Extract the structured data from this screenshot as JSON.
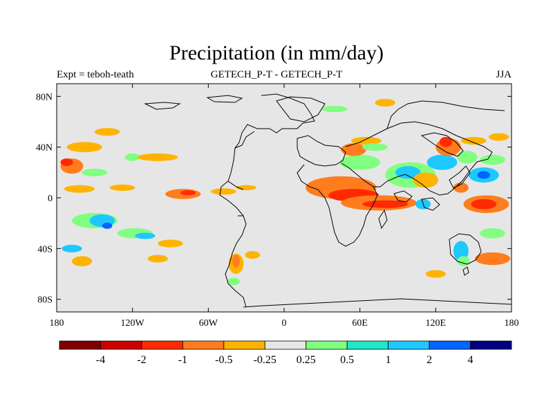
{
  "title": "Precipitation (in mm/day)",
  "subtitle_left": "Expt = teboh-teath",
  "subtitle_center": "GETECH_P-T - GETECH_P-T",
  "subtitle_right": "JJA",
  "map": {
    "background": "#e6e6e6",
    "lon_range": [
      -180,
      180
    ],
    "lat_range": [
      -90,
      90
    ],
    "x_ticks": [
      {
        "value": -180,
        "label": "180"
      },
      {
        "value": -120,
        "label": "120W"
      },
      {
        "value": -60,
        "label": "60W"
      },
      {
        "value": 0,
        "label": "0"
      },
      {
        "value": 60,
        "label": "60E"
      },
      {
        "value": 120,
        "label": "120E"
      },
      {
        "value": 180,
        "label": "180"
      }
    ],
    "y_ticks": [
      {
        "value": 80,
        "label": "80N"
      },
      {
        "value": 40,
        "label": "40N"
      },
      {
        "value": 0,
        "label": "0"
      },
      {
        "value": -40,
        "label": "40S"
      },
      {
        "value": -80,
        "label": "80S"
      }
    ],
    "anomaly_patches": [
      {
        "lon": -168,
        "lat": 25,
        "rx": 9,
        "ry": 6,
        "color": "#ff7d1e"
      },
      {
        "lon": -172,
        "lat": 28,
        "rx": 5,
        "ry": 3,
        "color": "#ff2a00"
      },
      {
        "lon": -158,
        "lat": 40,
        "rx": 14,
        "ry": 4,
        "color": "#ffb300"
      },
      {
        "lon": -140,
        "lat": 52,
        "rx": 10,
        "ry": 3,
        "color": "#ffb300"
      },
      {
        "lon": -150,
        "lat": 20,
        "rx": 10,
        "ry": 3,
        "color": "#80ff80"
      },
      {
        "lon": -120,
        "lat": 32,
        "rx": 6,
        "ry": 3,
        "color": "#80ff80"
      },
      {
        "lon": -100,
        "lat": 32,
        "rx": 16,
        "ry": 3,
        "color": "#ffb300"
      },
      {
        "lon": -162,
        "lat": 7,
        "rx": 12,
        "ry": 3,
        "color": "#ffb300"
      },
      {
        "lon": -128,
        "lat": 8,
        "rx": 10,
        "ry": 2.5,
        "color": "#ffb300"
      },
      {
        "lon": -80,
        "lat": 3,
        "rx": 14,
        "ry": 4,
        "color": "#ff7d1e"
      },
      {
        "lon": -76,
        "lat": 4,
        "rx": 6,
        "ry": 2,
        "color": "#ff2a00"
      },
      {
        "lon": -48,
        "lat": 5,
        "rx": 10,
        "ry": 2.5,
        "color": "#ffb300"
      },
      {
        "lon": -30,
        "lat": 8,
        "rx": 8,
        "ry": 2,
        "color": "#ffb300"
      },
      {
        "lon": -150,
        "lat": -18,
        "rx": 18,
        "ry": 6,
        "color": "#80ff80"
      },
      {
        "lon": -144,
        "lat": -18,
        "rx": 10,
        "ry": 5,
        "color": "#1ec8ff"
      },
      {
        "lon": -140,
        "lat": -22,
        "rx": 4,
        "ry": 2.5,
        "color": "#0064ff"
      },
      {
        "lon": -118,
        "lat": -28,
        "rx": 14,
        "ry": 4,
        "color": "#80ff80"
      },
      {
        "lon": -110,
        "lat": -30,
        "rx": 8,
        "ry": 2.5,
        "color": "#1ec8ff"
      },
      {
        "lon": -90,
        "lat": -36,
        "rx": 10,
        "ry": 3,
        "color": "#ffb300"
      },
      {
        "lon": -160,
        "lat": -50,
        "rx": 8,
        "ry": 4,
        "color": "#ffb300"
      },
      {
        "lon": -168,
        "lat": -40,
        "rx": 8,
        "ry": 3,
        "color": "#1ec8ff"
      },
      {
        "lon": -100,
        "lat": -48,
        "rx": 8,
        "ry": 3,
        "color": "#ffb300"
      },
      {
        "lon": -38,
        "lat": -52,
        "rx": 6,
        "ry": 8,
        "color": "#ffb300"
      },
      {
        "lon": -38,
        "lat": -50,
        "rx": 3,
        "ry": 5,
        "color": "#ff7d1e"
      },
      {
        "lon": -40,
        "lat": -66,
        "rx": 5,
        "ry": 3,
        "color": "#80ff80"
      },
      {
        "lon": -25,
        "lat": -45,
        "rx": 6,
        "ry": 3,
        "color": "#ffb300"
      },
      {
        "lon": 45,
        "lat": 8,
        "rx": 28,
        "ry": 9,
        "color": "#ff7d1e"
      },
      {
        "lon": 55,
        "lat": 2,
        "rx": 20,
        "ry": 5,
        "color": "#ff2a00"
      },
      {
        "lon": 75,
        "lat": -4,
        "rx": 30,
        "ry": 6,
        "color": "#ff7d1e"
      },
      {
        "lon": 80,
        "lat": -5,
        "rx": 18,
        "ry": 3,
        "color": "#ff2a00"
      },
      {
        "lon": 60,
        "lat": 28,
        "rx": 16,
        "ry": 6,
        "color": "#80ff80"
      },
      {
        "lon": 55,
        "lat": 38,
        "rx": 10,
        "ry": 5,
        "color": "#ff7d1e"
      },
      {
        "lon": 65,
        "lat": 45,
        "rx": 12,
        "ry": 3,
        "color": "#ffb300"
      },
      {
        "lon": 72,
        "lat": 40,
        "rx": 10,
        "ry": 3,
        "color": "#80ff80"
      },
      {
        "lon": 100,
        "lat": 18,
        "rx": 20,
        "ry": 10,
        "color": "#80ff80"
      },
      {
        "lon": 98,
        "lat": 20,
        "rx": 10,
        "ry": 5,
        "color": "#1ec8ff"
      },
      {
        "lon": 112,
        "lat": 14,
        "rx": 10,
        "ry": 6,
        "color": "#ffb300"
      },
      {
        "lon": 125,
        "lat": 28,
        "rx": 12,
        "ry": 6,
        "color": "#1ec8ff"
      },
      {
        "lon": 130,
        "lat": 40,
        "rx": 10,
        "ry": 7,
        "color": "#ff7d1e"
      },
      {
        "lon": 128,
        "lat": 44,
        "rx": 5,
        "ry": 4,
        "color": "#ff2a00"
      },
      {
        "lon": 145,
        "lat": 32,
        "rx": 8,
        "ry": 5,
        "color": "#80ff80"
      },
      {
        "lon": 158,
        "lat": 18,
        "rx": 12,
        "ry": 6,
        "color": "#1ec8ff"
      },
      {
        "lon": 158,
        "lat": 18,
        "rx": 5,
        "ry": 3,
        "color": "#0064ff"
      },
      {
        "lon": 165,
        "lat": 30,
        "rx": 10,
        "ry": 4,
        "color": "#80ff80"
      },
      {
        "lon": 160,
        "lat": -5,
        "rx": 18,
        "ry": 7,
        "color": "#ff7d1e"
      },
      {
        "lon": 158,
        "lat": -5,
        "rx": 10,
        "ry": 4,
        "color": "#ff2a00"
      },
      {
        "lon": 140,
        "lat": 8,
        "rx": 6,
        "ry": 4,
        "color": "#ff7d1e"
      },
      {
        "lon": 110,
        "lat": -5,
        "rx": 6,
        "ry": 4,
        "color": "#1ec8ff"
      },
      {
        "lon": 165,
        "lat": -28,
        "rx": 10,
        "ry": 4,
        "color": "#80ff80"
      },
      {
        "lon": 140,
        "lat": -42,
        "rx": 6,
        "ry": 8,
        "color": "#1ec8ff"
      },
      {
        "lon": 142,
        "lat": -50,
        "rx": 5,
        "ry": 4,
        "color": "#80ff80"
      },
      {
        "lon": 165,
        "lat": -48,
        "rx": 14,
        "ry": 5,
        "color": "#ff7d1e"
      },
      {
        "lon": 120,
        "lat": -60,
        "rx": 8,
        "ry": 3,
        "color": "#ffb300"
      },
      {
        "lon": 80,
        "lat": 75,
        "rx": 8,
        "ry": 3,
        "color": "#ffb300"
      },
      {
        "lon": 40,
        "lat": 70,
        "rx": 10,
        "ry": 2.5,
        "color": "#80ff80"
      },
      {
        "lon": 150,
        "lat": 45,
        "rx": 10,
        "ry": 3,
        "color": "#ffb300"
      },
      {
        "lon": 170,
        "lat": 48,
        "rx": 8,
        "ry": 3,
        "color": "#ffb300"
      }
    ]
  },
  "colorbar": {
    "colors": [
      "#800000",
      "#cc0000",
      "#ff2a00",
      "#ff7d1e",
      "#ffb300",
      "#e6e6e6",
      "#80ff80",
      "#1ee8c8",
      "#1ec8ff",
      "#0064ff",
      "#000080"
    ],
    "labels": [
      "-4",
      "-2",
      "-1",
      "-0.5",
      "-0.25",
      "0.25",
      "0.5",
      "1",
      "2",
      "4"
    ]
  }
}
